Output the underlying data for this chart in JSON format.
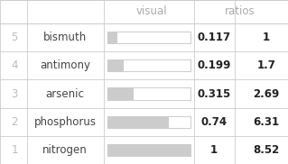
{
  "rows": [
    {
      "rank": 5,
      "name": "bismuth",
      "value": 0.117,
      "ratio": "1"
    },
    {
      "rank": 4,
      "name": "antimony",
      "value": 0.199,
      "ratio": "1.7"
    },
    {
      "rank": 3,
      "name": "arsenic",
      "value": 0.315,
      "ratio": "2.69"
    },
    {
      "rank": 2,
      "name": "phosphorus",
      "value": 0.74,
      "ratio": "6.31"
    },
    {
      "rank": 1,
      "name": "nitrogen",
      "value": 1.0,
      "ratio": "8.52"
    }
  ],
  "col_header_visual": "visual",
  "col_header_ratios": "ratios",
  "background_color": "#ffffff",
  "header_text_color": "#aaaaaa",
  "rank_text_color": "#bbbbbb",
  "name_text_color": "#444444",
  "value_text_color": "#222222",
  "bar_fill_color": "#cccccc",
  "bar_outline_color": "#cccccc",
  "grid_color": "#cccccc",
  "font_size": 8.5,
  "header_font_size": 8.5
}
